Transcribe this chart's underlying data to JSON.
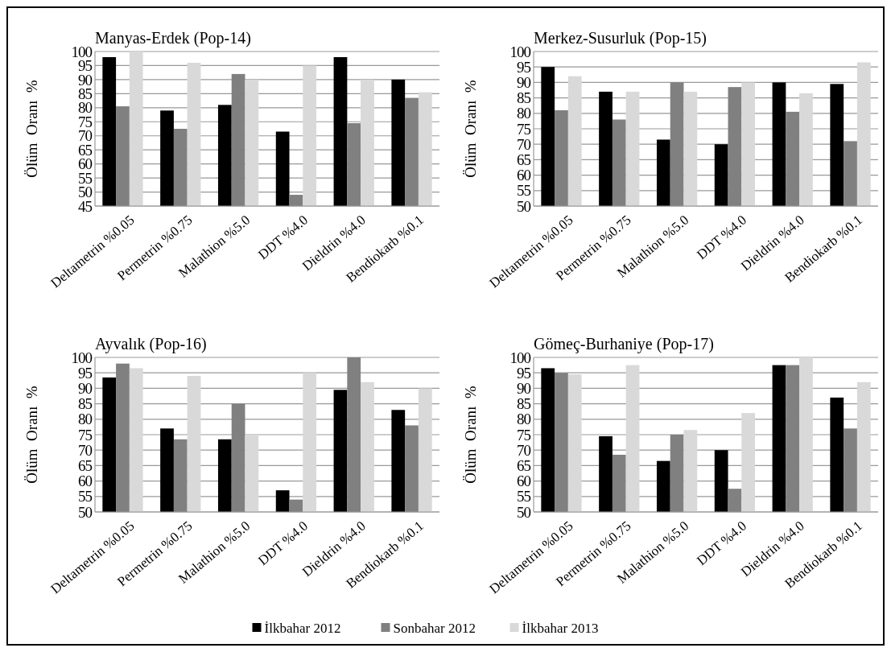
{
  "chart_data": [
    {
      "type": "bar",
      "title": "Manyas-Erdek (Pop-14)",
      "ylabel": "Ölüm  Oranı  %",
      "categories": [
        "Deltametrin %0.05",
        "Permetrin %0.75",
        "Malathion %5.0",
        "DDT %4.0",
        "Dieldrin %4.0",
        "Bendiokarb %0.1"
      ],
      "ylim": [
        45,
        100
      ],
      "yticks": [
        45,
        50,
        55,
        60,
        65,
        70,
        75,
        80,
        85,
        90,
        95,
        100
      ],
      "grid": "y",
      "legend": "bottom",
      "series": [
        {
          "name": "İlkbahar 2012",
          "color": "#000000",
          "values": [
            98,
            79,
            81,
            71.5,
            98,
            90
          ]
        },
        {
          "name": "Sonbahar 2012",
          "color": "#808080",
          "values": [
            80.5,
            72.5,
            92,
            49,
            74.5,
            83.5
          ]
        },
        {
          "name": "İlkbahar 2013",
          "color": "#d9d9d9",
          "values": [
            100,
            96,
            90,
            95,
            90,
            85.5
          ]
        }
      ]
    },
    {
      "type": "bar",
      "title": "Merkez-Susurluk (Pop-15)",
      "ylabel": "Ölüm  Oranı  %",
      "categories": [
        "Deltametrin %0.05",
        "Permetrin %0.75",
        "Malathion %5.0",
        "DDT %4.0",
        "Dieldrin %4.0",
        "Bendiokarb %0.1"
      ],
      "ylim": [
        50,
        100
      ],
      "yticks": [
        50,
        55,
        60,
        65,
        70,
        75,
        80,
        85,
        90,
        95,
        100
      ],
      "grid": "y",
      "series": [
        {
          "color": "#000000",
          "values": [
            95,
            87,
            71.5,
            70,
            90,
            89.5
          ]
        },
        {
          "color": "#808080",
          "values": [
            81,
            78,
            90,
            88.5,
            80.5,
            71
          ]
        },
        {
          "color": "#d9d9d9",
          "values": [
            92,
            87,
            87,
            90,
            86.5,
            96.5
          ]
        }
      ]
    },
    {
      "type": "bar",
      "title": "Ayvalık (Pop-16)",
      "ylabel": "Ölüm  Oranı  %",
      "categories": [
        "Deltametrin %0.05",
        "Permetrin %0.75",
        "Malathion %5.0",
        "DDT %4.0",
        "Dieldrin %4.0",
        "Bendiokarb %0.1"
      ],
      "ylim": [
        50,
        100
      ],
      "yticks": [
        50,
        55,
        60,
        65,
        70,
        75,
        80,
        85,
        90,
        95,
        100
      ],
      "grid": "y",
      "series": [
        {
          "color": "#000000",
          "values": [
            93.5,
            77,
            73.5,
            57,
            89.5,
            83
          ]
        },
        {
          "color": "#808080",
          "values": [
            98,
            73.5,
            85,
            54,
            100,
            78
          ]
        },
        {
          "color": "#d9d9d9",
          "values": [
            96.5,
            94,
            75,
            95,
            92,
            90
          ]
        }
      ]
    },
    {
      "type": "bar",
      "title": "Gömeç-Burhaniye (Pop-17)",
      "ylabel": "Ölüm  Oranı  %",
      "categories": [
        "Deltametrin %0.05",
        "Permetrin %0.75",
        "Malathion %5.0",
        "DDT %4.0",
        "Dieldrin %4.0",
        "Bendiokarb %0.1"
      ],
      "ylim": [
        50,
        100
      ],
      "yticks": [
        50,
        55,
        60,
        65,
        70,
        75,
        80,
        85,
        90,
        95,
        100
      ],
      "grid": "y",
      "series": [
        {
          "color": "#000000",
          "values": [
            96.5,
            74.5,
            66.5,
            70,
            97.5,
            87
          ]
        },
        {
          "color": "#808080",
          "values": [
            95,
            68.5,
            75,
            57.5,
            97.5,
            77
          ]
        },
        {
          "color": "#d9d9d9",
          "values": [
            94.5,
            97.5,
            76.5,
            82,
            100,
            92
          ]
        }
      ]
    }
  ]
}
